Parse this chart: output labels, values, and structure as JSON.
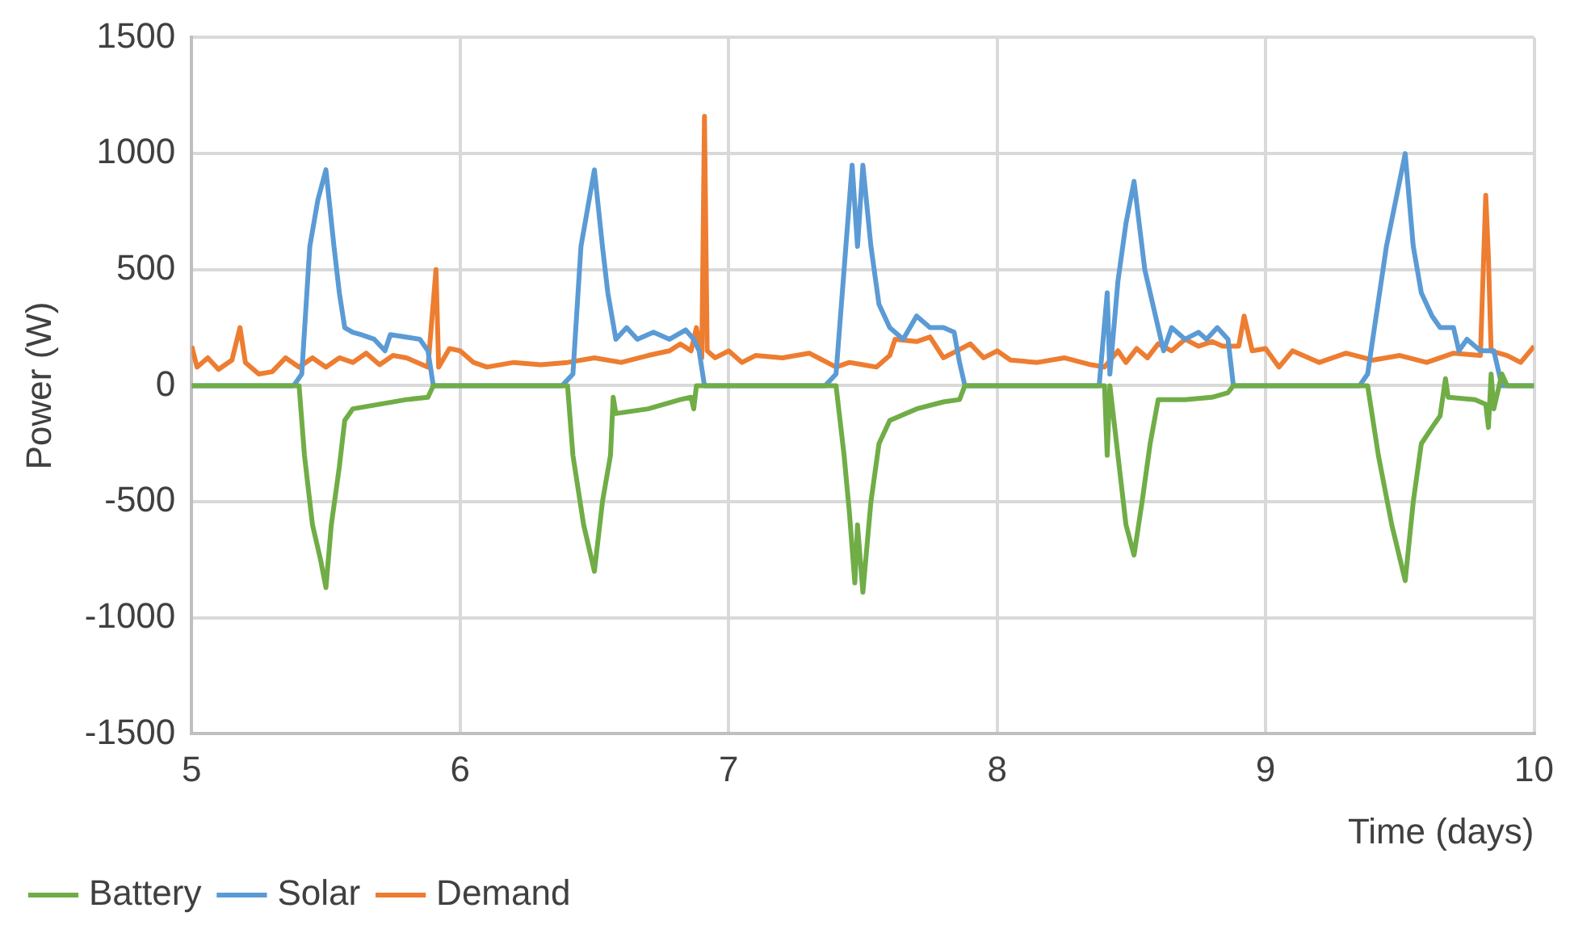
{
  "chart_data": {
    "type": "line",
    "xlabel": "Time (days)",
    "ylabel": "Power (W)",
    "xlim": [
      5,
      10
    ],
    "xticks": [
      5,
      6,
      7,
      8,
      9,
      10
    ],
    "ylim": [
      -1500,
      1500
    ],
    "yticks": [
      -1500,
      -1000,
      -500,
      0,
      500,
      1000,
      1500
    ],
    "grid": true,
    "legend": "bottom left",
    "marker": "none",
    "line_style": "solid",
    "series": [
      {
        "name": "Battery",
        "color": "#70ad47",
        "x": [
          5.0,
          5.4,
          5.42,
          5.45,
          5.48,
          5.5,
          5.52,
          5.55,
          5.57,
          5.6,
          5.7,
          5.8,
          5.88,
          5.9,
          6.4,
          6.42,
          6.46,
          6.5,
          6.53,
          6.56,
          6.57,
          6.58,
          6.7,
          6.82,
          6.86,
          6.87,
          6.88,
          7.4,
          7.43,
          7.45,
          7.47,
          7.48,
          7.5,
          7.53,
          7.56,
          7.6,
          7.7,
          7.8,
          7.86,
          7.88,
          8.4,
          8.41,
          8.42,
          8.45,
          8.48,
          8.51,
          8.54,
          8.57,
          8.6,
          8.7,
          8.8,
          8.86,
          8.88,
          9.38,
          9.42,
          9.47,
          9.52,
          9.55,
          9.58,
          9.62,
          9.65,
          9.67,
          9.68,
          9.78,
          9.82,
          9.83,
          9.84,
          9.85,
          9.88,
          9.9,
          10.0
        ],
        "values": [
          0,
          0,
          -300,
          -600,
          -750,
          -870,
          -600,
          -350,
          -150,
          -100,
          -80,
          -60,
          -50,
          0,
          0,
          -300,
          -600,
          -800,
          -500,
          -300,
          -50,
          -120,
          -100,
          -60,
          -50,
          -100,
          0,
          0,
          -300,
          -550,
          -850,
          -600,
          -890,
          -500,
          -250,
          -150,
          -100,
          -70,
          -60,
          0,
          0,
          -300,
          0,
          -300,
          -600,
          -730,
          -500,
          -250,
          -60,
          -60,
          -50,
          -30,
          0,
          0,
          -300,
          -600,
          -840,
          -500,
          -250,
          -180,
          -130,
          30,
          -50,
          -60,
          -80,
          -180,
          50,
          -100,
          50,
          0,
          0
        ]
      },
      {
        "name": "Solar",
        "color": "#5b9bd5",
        "x": [
          5.0,
          5.38,
          5.41,
          5.44,
          5.47,
          5.5,
          5.53,
          5.55,
          5.57,
          5.6,
          5.63,
          5.68,
          5.72,
          5.74,
          5.85,
          5.88,
          5.9,
          6.38,
          6.42,
          6.45,
          6.5,
          6.53,
          6.55,
          6.58,
          6.62,
          6.66,
          6.72,
          6.78,
          6.84,
          6.87,
          6.89,
          6.91,
          7.36,
          7.4,
          7.43,
          7.46,
          7.48,
          7.5,
          7.53,
          7.56,
          7.6,
          7.65,
          7.7,
          7.75,
          7.8,
          7.84,
          7.86,
          7.88,
          8.38,
          8.41,
          8.42,
          8.45,
          8.48,
          8.51,
          8.55,
          8.59,
          8.62,
          8.65,
          8.7,
          8.75,
          8.78,
          8.82,
          8.86,
          8.88,
          9.35,
          9.38,
          9.45,
          9.52,
          9.55,
          9.58,
          9.62,
          9.65,
          9.7,
          9.72,
          9.75,
          9.8,
          9.85,
          9.88,
          10.0
        ],
        "values": [
          0,
          0,
          50,
          600,
          800,
          930,
          600,
          400,
          250,
          230,
          220,
          200,
          150,
          220,
          200,
          150,
          0,
          0,
          50,
          600,
          930,
          600,
          400,
          200,
          250,
          200,
          230,
          200,
          240,
          200,
          150,
          0,
          0,
          50,
          500,
          950,
          600,
          950,
          600,
          350,
          250,
          200,
          300,
          250,
          250,
          230,
          100,
          0,
          0,
          400,
          50,
          450,
          700,
          880,
          500,
          300,
          150,
          250,
          200,
          230,
          200,
          250,
          200,
          0,
          0,
          50,
          600,
          1000,
          600,
          400,
          300,
          250,
          250,
          150,
          200,
          150,
          150,
          0,
          0
        ]
      },
      {
        "name": "Demand",
        "color": "#ed7d31",
        "x": [
          5.0,
          5.02,
          5.06,
          5.1,
          5.15,
          5.18,
          5.2,
          5.25,
          5.3,
          5.35,
          5.4,
          5.45,
          5.5,
          5.55,
          5.6,
          5.65,
          5.7,
          5.75,
          5.8,
          5.88,
          5.91,
          5.92,
          5.96,
          6.0,
          6.05,
          6.1,
          6.2,
          6.3,
          6.4,
          6.5,
          6.6,
          6.7,
          6.78,
          6.82,
          6.86,
          6.88,
          6.9,
          6.91,
          6.92,
          6.95,
          7.0,
          7.05,
          7.1,
          7.2,
          7.3,
          7.4,
          7.45,
          7.5,
          7.55,
          7.6,
          7.62,
          7.7,
          7.75,
          7.8,
          7.85,
          7.9,
          7.95,
          8.0,
          8.05,
          8.15,
          8.25,
          8.35,
          8.4,
          8.45,
          8.48,
          8.52,
          8.56,
          8.6,
          8.65,
          8.7,
          8.75,
          8.8,
          8.84,
          8.9,
          8.92,
          8.95,
          9.0,
          9.05,
          9.1,
          9.2,
          9.3,
          9.4,
          9.5,
          9.6,
          9.7,
          9.8,
          9.82,
          9.83,
          9.84,
          9.9,
          9.95,
          10.0
        ],
        "values": [
          170,
          80,
          120,
          70,
          110,
          250,
          100,
          50,
          60,
          120,
          80,
          120,
          80,
          120,
          100,
          140,
          90,
          130,
          120,
          80,
          500,
          80,
          160,
          150,
          100,
          80,
          100,
          90,
          100,
          120,
          100,
          130,
          150,
          180,
          150,
          250,
          120,
          1160,
          150,
          120,
          150,
          100,
          130,
          120,
          140,
          80,
          100,
          90,
          80,
          130,
          200,
          190,
          210,
          120,
          150,
          180,
          120,
          150,
          110,
          100,
          120,
          90,
          80,
          150,
          100,
          160,
          120,
          180,
          150,
          200,
          170,
          190,
          170,
          170,
          300,
          150,
          160,
          80,
          150,
          100,
          140,
          110,
          130,
          100,
          140,
          130,
          820,
          550,
          150,
          130,
          100,
          170
        ]
      }
    ]
  }
}
